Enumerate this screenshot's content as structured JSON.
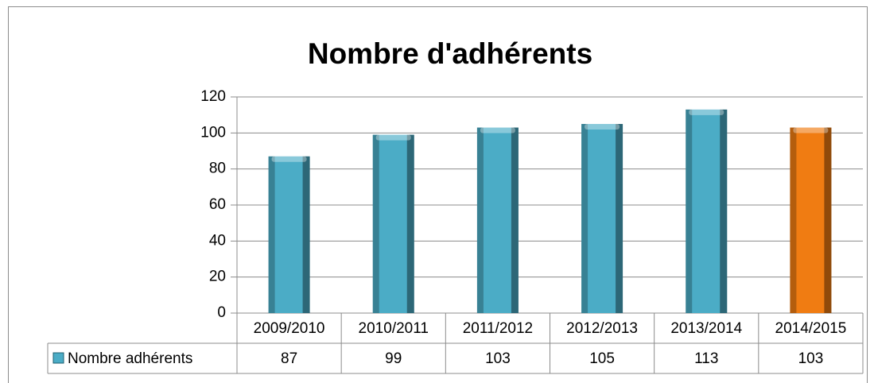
{
  "chart_data": {
    "type": "bar",
    "title": "Nombre d'adhérents",
    "categories": [
      "2009/2010",
      "2010/2011",
      "2011/2012",
      "2012/2013",
      "2013/2014",
      "2014/2015"
    ],
    "series": [
      {
        "name": "Nombre adhérents",
        "color": "#4bacc6",
        "colors": [
          "#4bacc6",
          "#4bacc6",
          "#4bacc6",
          "#4bacc6",
          "#4bacc6",
          "#f07c12"
        ],
        "values": [
          87,
          99,
          103,
          105,
          113,
          103
        ]
      }
    ],
    "ylim": [
      0,
      120
    ],
    "yticks": [
      0,
      20,
      40,
      60,
      80,
      100,
      120
    ],
    "grid": true,
    "data_table": true
  }
}
